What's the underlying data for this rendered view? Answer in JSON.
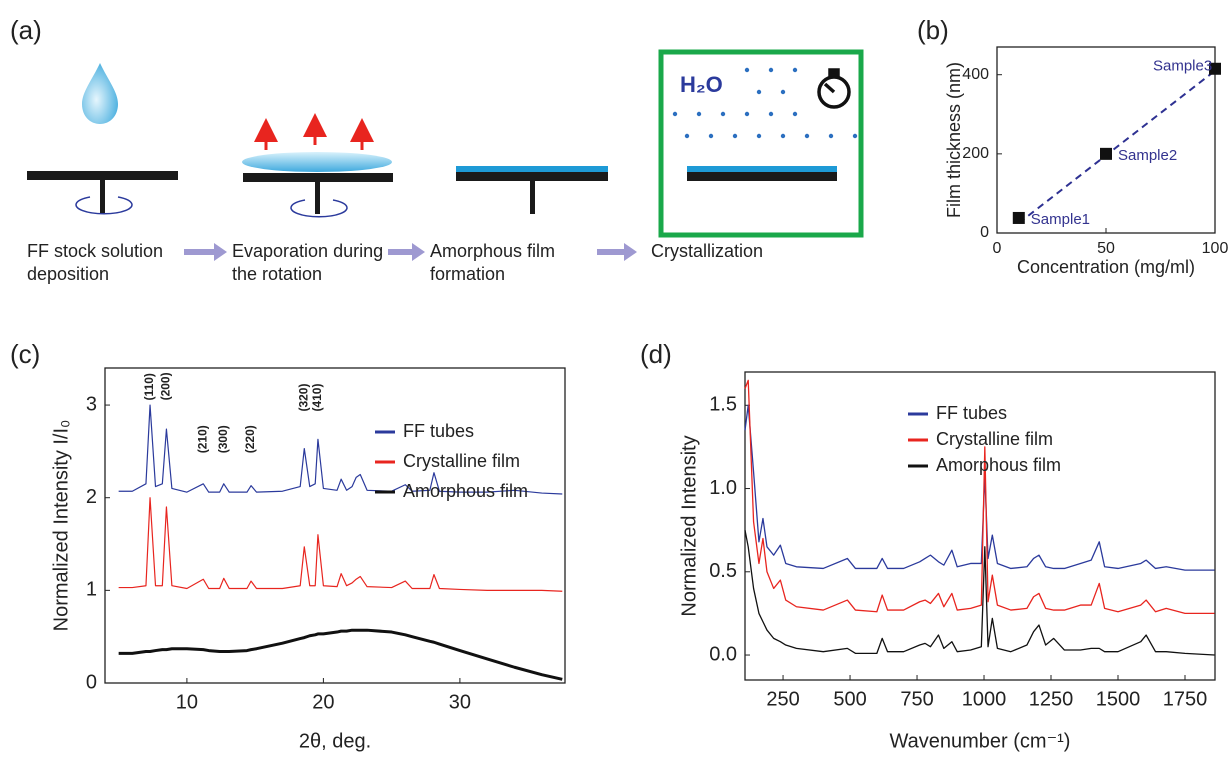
{
  "diagram": {
    "label": "(a)",
    "h2o": "H₂O",
    "steps": [
      [
        "FF stock solution",
        "deposition"
      ],
      [
        "Evaporation during",
        "the rotation"
      ],
      [
        "Amorphous film",
        "formation"
      ],
      [
        "Crystallization"
      ]
    ]
  },
  "chart_data": [
    {
      "type": "scatter",
      "label": "(b)",
      "xlabel": "Concentration (mg/ml)",
      "ylabel": "Film thickness (nm)",
      "x": [
        10,
        50,
        100
      ],
      "values": [
        38,
        200,
        415
      ],
      "point_labels": [
        "Sample1",
        "Sample2",
        "Sample3"
      ],
      "color": "#111111",
      "label_color": "#33338f",
      "fit": {
        "x": [
          10,
          100
        ],
        "values": [
          25,
          410
        ],
        "color": "#2e3192"
      },
      "xlim": [
        0,
        100
      ],
      "xticks": [
        0,
        50,
        100
      ],
      "ylim": [
        0,
        470
      ],
      "yticks": [
        0,
        200,
        400
      ]
    },
    {
      "type": "line",
      "label": "(c)",
      "xlabel": "2θ, deg.",
      "ylabel": "Normalized Intensity I/I₀",
      "x": [
        5,
        6,
        7,
        7.3,
        7.7,
        8.2,
        8.5,
        8.9,
        10,
        11.2,
        11.6,
        12.4,
        12.7,
        13.1,
        14.4,
        14.7,
        15.1,
        17,
        18.3,
        18.6,
        19,
        19.4,
        19.6,
        20,
        21,
        21.3,
        21.7,
        22.1,
        22.4,
        22.7,
        23.2,
        25,
        26,
        26.5,
        27.8,
        28.1,
        28.5,
        30,
        32,
        34,
        36,
        37.5
      ],
      "series": [
        {
          "name": "FF tubes",
          "color": "#2b3a9c",
          "width": 1.2,
          "values": [
            2.07,
            2.07,
            2.15,
            3.0,
            2.12,
            2.15,
            2.74,
            2.1,
            2.06,
            2.15,
            2.06,
            2.06,
            2.15,
            2.06,
            2.06,
            2.13,
            2.06,
            2.07,
            2.12,
            2.53,
            2.12,
            2.15,
            2.63,
            2.1,
            2.08,
            2.2,
            2.08,
            2.12,
            2.22,
            2.25,
            2.08,
            2.07,
            2.14,
            2.07,
            2.08,
            2.27,
            2.07,
            2.06,
            2.06,
            2.08,
            2.05,
            2.04
          ]
        },
        {
          "name": "Crystalline film",
          "color": "#e8251f",
          "width": 1.2,
          "values": [
            1.03,
            1.03,
            1.05,
            2.0,
            1.05,
            1.05,
            1.9,
            1.05,
            1.02,
            1.12,
            1.02,
            1.02,
            1.13,
            1.02,
            1.02,
            1.1,
            1.02,
            1.02,
            1.05,
            1.47,
            1.05,
            1.05,
            1.6,
            1.05,
            1.04,
            1.18,
            1.05,
            1.08,
            1.12,
            1.15,
            1.04,
            1.03,
            1.1,
            1.02,
            1.02,
            1.17,
            1.02,
            1.01,
            1.0,
            1.0,
            1.0,
            0.99
          ]
        },
        {
          "name": "Amorphous film",
          "color": "#111111",
          "width": 3,
          "values": [
            0.32,
            0.32,
            0.34,
            0.34,
            0.35,
            0.36,
            0.36,
            0.37,
            0.37,
            0.36,
            0.35,
            0.34,
            0.34,
            0.34,
            0.35,
            0.36,
            0.37,
            0.43,
            0.48,
            0.49,
            0.51,
            0.52,
            0.53,
            0.53,
            0.55,
            0.56,
            0.56,
            0.57,
            0.57,
            0.57,
            0.57,
            0.55,
            0.52,
            0.5,
            0.45,
            0.44,
            0.42,
            0.35,
            0.26,
            0.17,
            0.09,
            0.04
          ]
        }
      ],
      "annotations": [
        {
          "text": "(110)",
          "x": 7.3,
          "y": 3.05
        },
        {
          "text": "(200)",
          "x": 8.5,
          "y": 3.05
        },
        {
          "text": "(210)",
          "x": 11.2,
          "y": 2.48
        },
        {
          "text": "(300)",
          "x": 12.7,
          "y": 2.48
        },
        {
          "text": "(220)",
          "x": 14.7,
          "y": 2.48
        },
        {
          "text": "(320)",
          "x": 18.6,
          "y": 2.93
        },
        {
          "text": "(410)",
          "x": 19.6,
          "y": 2.93
        }
      ],
      "xlim": [
        4,
        37.7
      ],
      "xticks": [
        10,
        20,
        30
      ],
      "ylim": [
        0,
        3.4
      ],
      "yticks": [
        0,
        1,
        2,
        3
      ],
      "legend": "upper right"
    },
    {
      "type": "line",
      "label": "(d)",
      "xlabel": "Wavenumber (cm⁻¹)",
      "ylabel": "Normalized Intensity",
      "x": [
        108,
        120,
        140,
        160,
        175,
        190,
        215,
        240,
        260,
        300,
        400,
        490,
        520,
        600,
        620,
        640,
        700,
        760,
        780,
        800,
        830,
        850,
        880,
        900,
        950,
        990,
        1003,
        1015,
        1031,
        1050,
        1100,
        1160,
        1185,
        1205,
        1230,
        1260,
        1300,
        1360,
        1400,
        1430,
        1450,
        1500,
        1585,
        1605,
        1640,
        1680,
        1750,
        1860
      ],
      "series": [
        {
          "name": "FF tubes",
          "color": "#2b3a9c",
          "width": 1.3,
          "values": [
            1.35,
            1.5,
            1.1,
            0.68,
            0.82,
            0.65,
            0.6,
            0.66,
            0.55,
            0.53,
            0.52,
            0.58,
            0.52,
            0.52,
            0.58,
            0.52,
            0.52,
            0.56,
            0.58,
            0.6,
            0.56,
            0.54,
            0.63,
            0.53,
            0.55,
            0.55,
            1.08,
            0.58,
            0.72,
            0.55,
            0.52,
            0.53,
            0.58,
            0.6,
            0.53,
            0.52,
            0.52,
            0.55,
            0.57,
            0.68,
            0.53,
            0.52,
            0.55,
            0.57,
            0.52,
            0.53,
            0.51,
            0.51
          ]
        },
        {
          "name": "Crystalline film",
          "color": "#e8251f",
          "width": 1.3,
          "values": [
            1.6,
            1.65,
            0.8,
            0.55,
            0.7,
            0.5,
            0.4,
            0.45,
            0.33,
            0.29,
            0.27,
            0.33,
            0.27,
            0.26,
            0.36,
            0.27,
            0.27,
            0.32,
            0.33,
            0.31,
            0.37,
            0.29,
            0.37,
            0.27,
            0.28,
            0.3,
            1.25,
            0.32,
            0.48,
            0.3,
            0.27,
            0.28,
            0.35,
            0.37,
            0.28,
            0.27,
            0.27,
            0.3,
            0.3,
            0.43,
            0.28,
            0.26,
            0.3,
            0.33,
            0.26,
            0.28,
            0.25,
            0.25
          ]
        },
        {
          "name": "Amorphous film",
          "color": "#111111",
          "width": 1.3,
          "values": [
            0.75,
            0.65,
            0.4,
            0.25,
            0.2,
            0.15,
            0.1,
            0.08,
            0.06,
            0.04,
            0.02,
            0.04,
            0.01,
            0.01,
            0.1,
            0.02,
            0.02,
            0.06,
            0.07,
            0.05,
            0.12,
            0.04,
            0.08,
            0.02,
            0.03,
            0.05,
            0.65,
            0.05,
            0.22,
            0.04,
            0.02,
            0.06,
            0.14,
            0.18,
            0.06,
            0.1,
            0.03,
            0.03,
            0.04,
            0.04,
            0.02,
            0.02,
            0.08,
            0.12,
            0.02,
            0.02,
            0.01,
            0.0
          ]
        }
      ],
      "xlim": [
        108,
        1862
      ],
      "xticks": [
        250,
        500,
        750,
        1000,
        1250,
        1500,
        1750
      ],
      "ylim": [
        -0.15,
        1.7
      ],
      "yticks": [
        {
          "value": 0,
          "label": "0.0"
        },
        {
          "value": 0.5,
          "label": "0.5"
        },
        {
          "value": 1,
          "label": "1.0"
        },
        {
          "value": 1.5,
          "label": "1.5"
        }
      ],
      "legend": "upper right"
    }
  ]
}
